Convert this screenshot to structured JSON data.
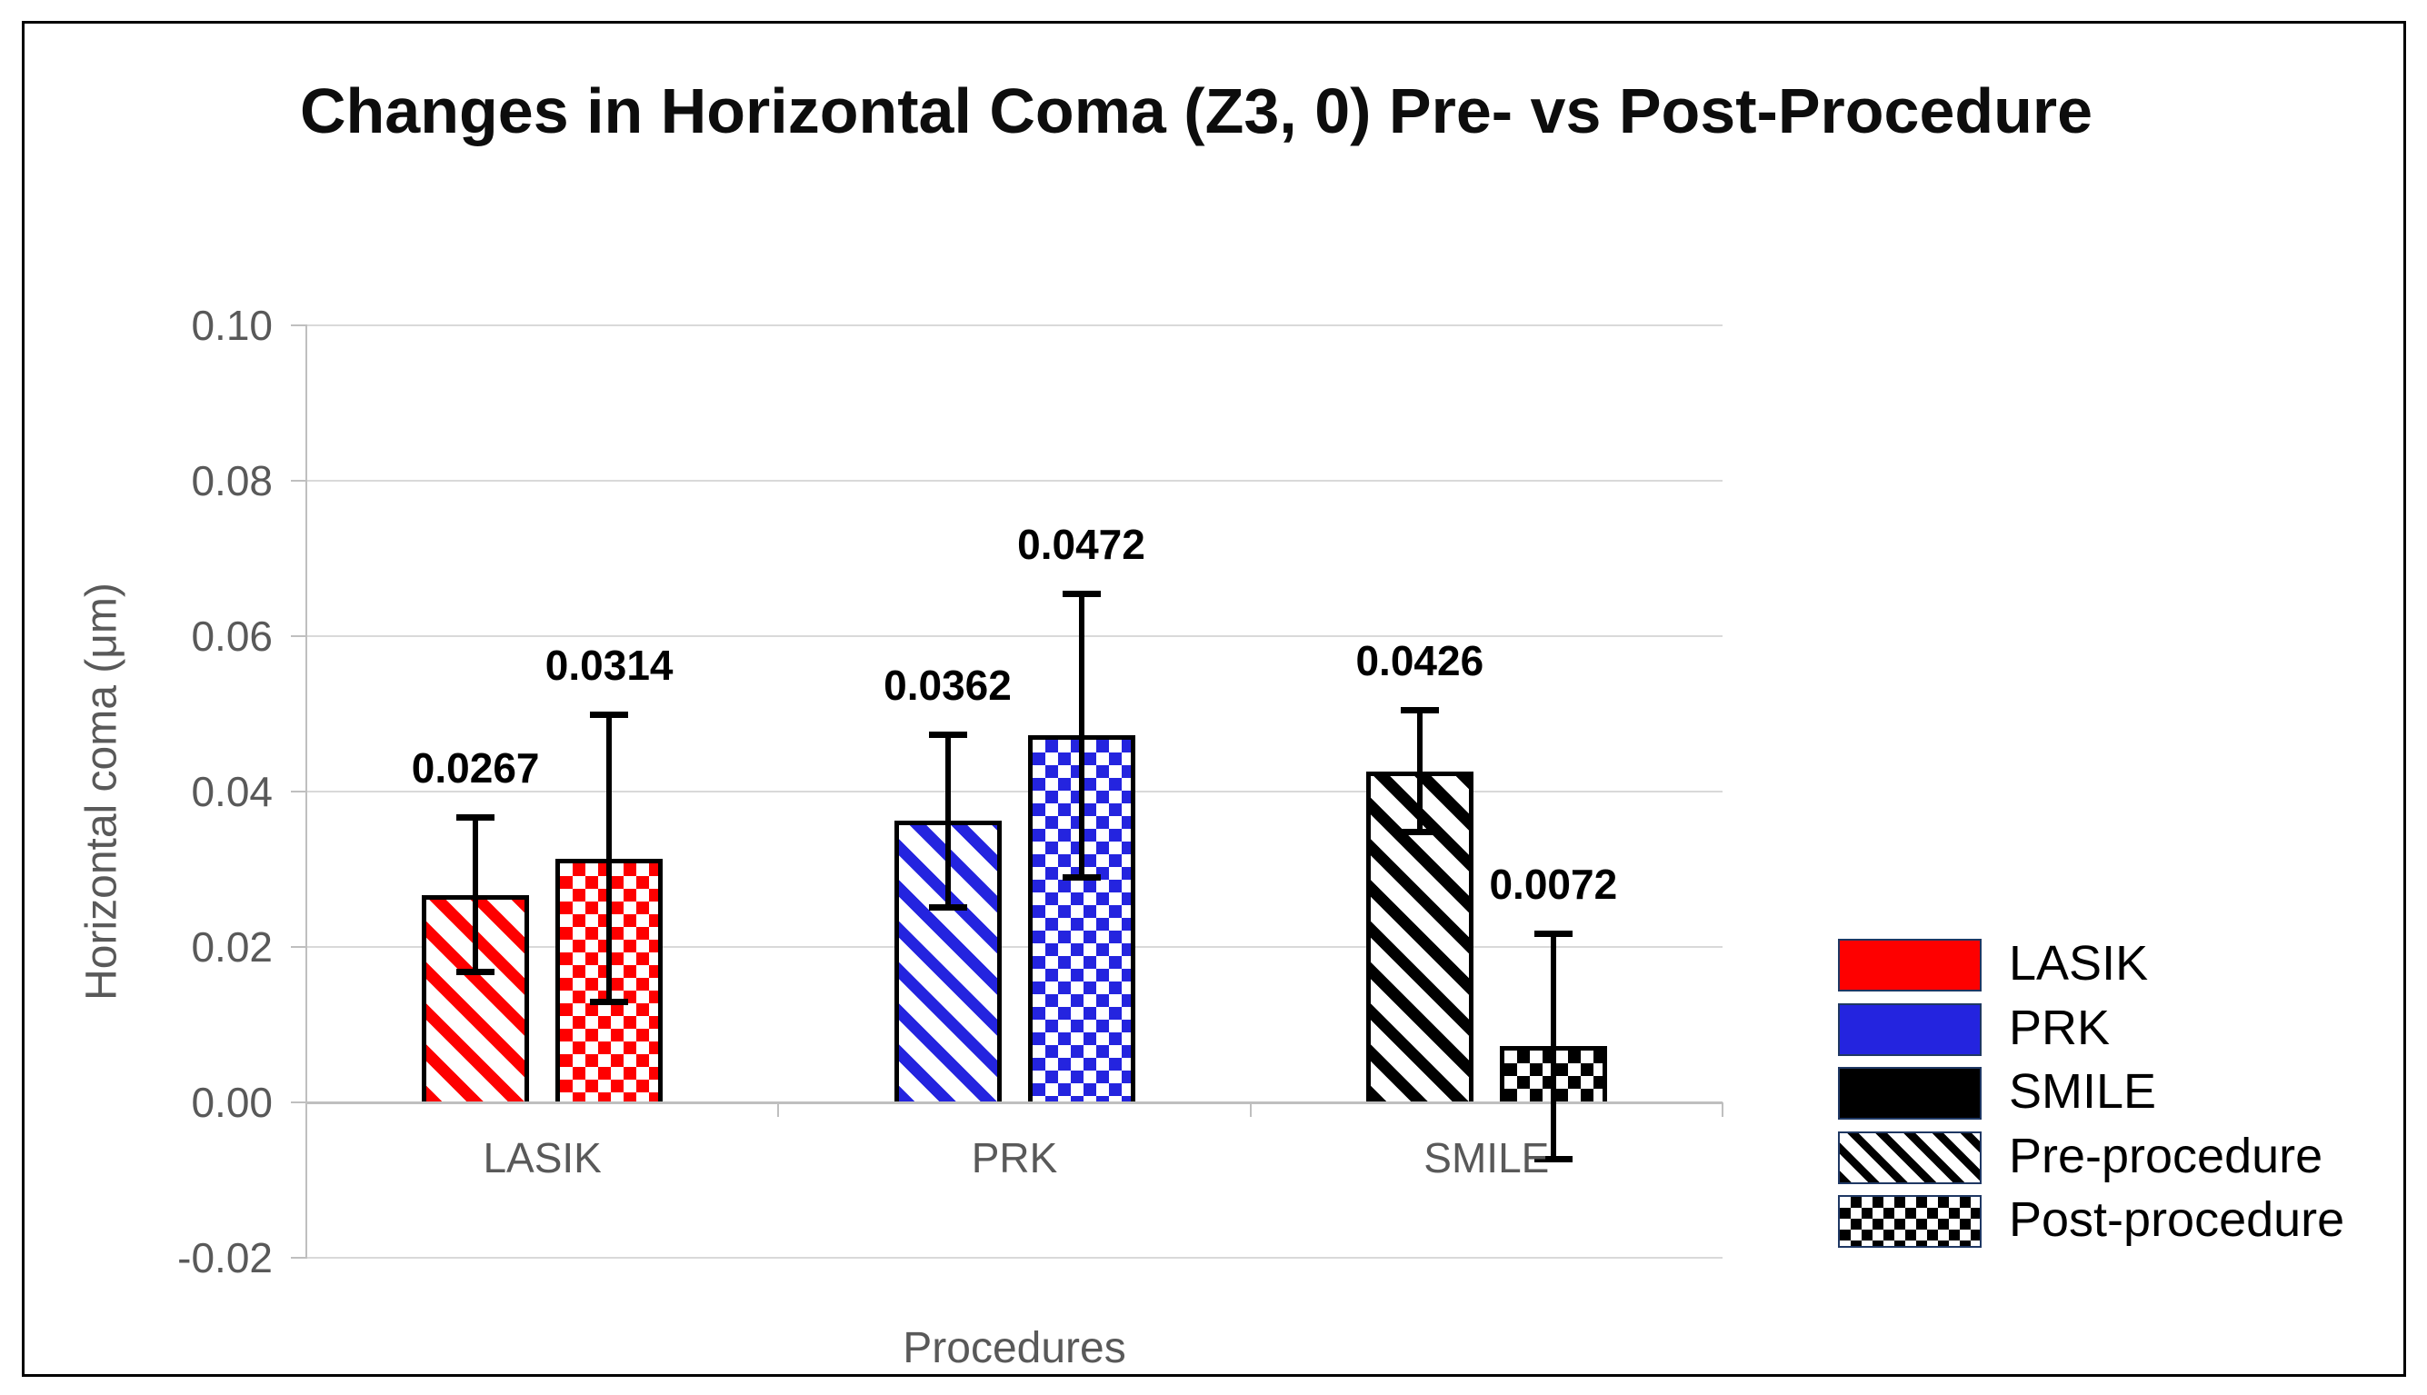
{
  "chart_data": {
    "type": "bar",
    "title": "Changes in Horizontal Coma (Z3, 0) Pre- vs Post-Procedure",
    "xlabel": "Procedures",
    "ylabel": "Horizontal coma (μm)",
    "ylim": [
      -0.02,
      0.1
    ],
    "yticks": [
      0.1,
      0.08,
      0.06,
      0.04,
      0.02,
      0.0,
      -0.02
    ],
    "ytick_labels": [
      "0.10",
      "0.08",
      "0.06",
      "0.04",
      "0.02",
      "0.00",
      "-0.02"
    ],
    "grid": true,
    "legend_position": "right",
    "categories": [
      "LASIK",
      "PRK",
      "SMILE"
    ],
    "category_colors": {
      "LASIK": "#fe0000",
      "PRK": "#2424df",
      "SMILE": "#000000"
    },
    "series": [
      {
        "name": "Pre-procedure",
        "pattern": "stripes",
        "values": [
          0.0267,
          0.0362,
          0.0426
        ],
        "value_labels": [
          "0.0267",
          "0.0362",
          "0.0426"
        ],
        "error": [
          0.01,
          0.0112,
          0.0079
        ]
      },
      {
        "name": "Post-procedure",
        "pattern": "checker",
        "values": [
          0.0314,
          0.0472,
          0.0072
        ],
        "value_labels": [
          "0.0314",
          "0.0472",
          "0.0072"
        ],
        "error": [
          0.0185,
          0.0183,
          0.0146
        ]
      }
    ],
    "legend": [
      {
        "label": "LASIK",
        "swatch": "solid",
        "color": "#fe0000"
      },
      {
        "label": "PRK",
        "swatch": "solid",
        "color": "#2424df"
      },
      {
        "label": "SMILE",
        "swatch": "solid",
        "color": "#000000"
      },
      {
        "label": "Pre-procedure",
        "swatch": "stripes",
        "color": "#000000"
      },
      {
        "label": "Post-procedure",
        "swatch": "checker",
        "color": "#000000"
      }
    ]
  },
  "colors": {
    "grid": "#d9d9d9",
    "axis": "#bfbfbf",
    "axis_text": "#595959",
    "label_text": "#000000",
    "legend_swatch_border": "#1f3864"
  }
}
